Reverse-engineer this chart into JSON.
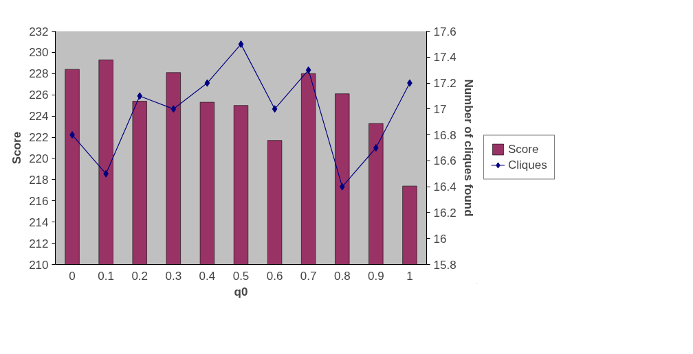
{
  "chart_data": {
    "type": "bar",
    "xlabel": "q0",
    "ylabel": "Score",
    "y2label": "Number of cliques found",
    "categories": [
      "0",
      "0.1",
      "0.2",
      "0.3",
      "0.4",
      "0.5",
      "0.6",
      "0.7",
      "0.8",
      "0.9",
      "1"
    ],
    "series": [
      {
        "name": "Score",
        "color": "#993366",
        "values": [
          228.4,
          229.3,
          225.4,
          228.1,
          225.3,
          225.0,
          221.7,
          228.0,
          226.1,
          223.3,
          217.4
        ]
      },
      {
        "name": "Cliques",
        "type": "line",
        "axis": "y2",
        "color": "#000080",
        "marker": "diamond",
        "values": [
          16.8,
          16.5,
          17.1,
          17.0,
          17.2,
          17.5,
          17.0,
          17.3,
          16.4,
          16.7,
          17.2
        ]
      }
    ],
    "ylim": [
      210,
      232
    ],
    "yticks": [
      210,
      212,
      214,
      216,
      218,
      220,
      222,
      224,
      226,
      228,
      230,
      232
    ],
    "y2lim": [
      15.8,
      17.6
    ],
    "y2ticks": [
      {
        "value": 15.8,
        "label": "15.8"
      },
      {
        "value": 16,
        "label": "16"
      },
      {
        "value": 16.2,
        "label": "16.2"
      },
      {
        "value": 16.4,
        "label": "16.4"
      },
      {
        "value": 16.6,
        "label": "16.6"
      },
      {
        "value": 16.8,
        "label": "16.8"
      },
      {
        "value": 17,
        "label": "17"
      },
      {
        "value": 17.2,
        "label": "17.2"
      },
      {
        "value": 17.4,
        "label": "17.4"
      },
      {
        "value": 17.6,
        "label": "17.6"
      }
    ],
    "grid": false,
    "legend": "right"
  }
}
